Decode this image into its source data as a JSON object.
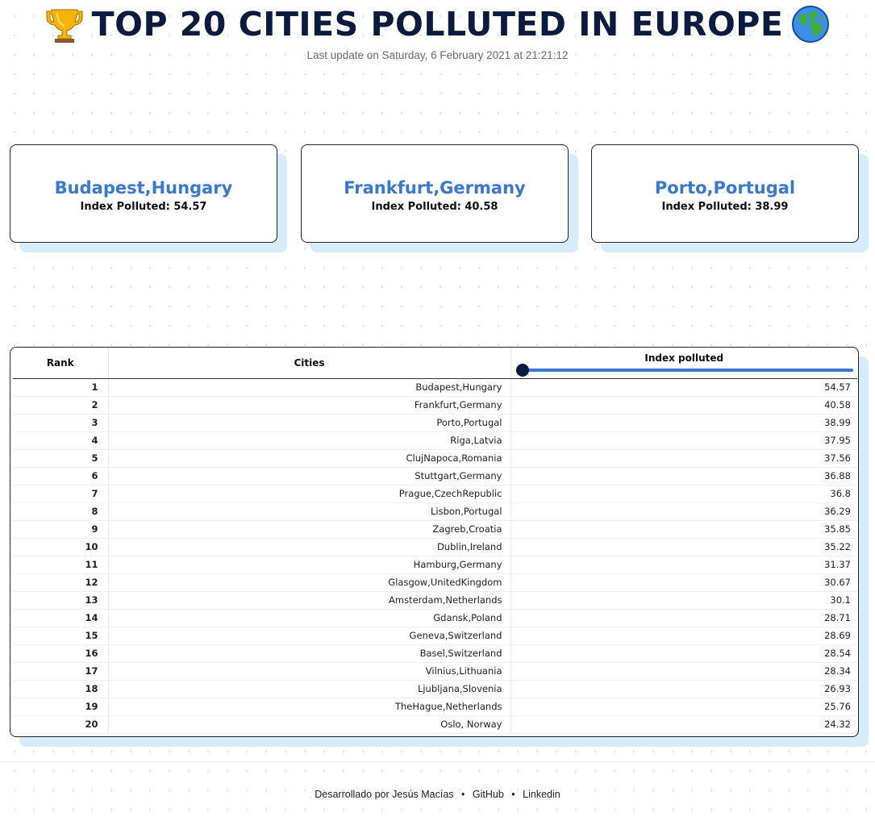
{
  "header": {
    "title": "TOP 20 CITIES POLLUTED IN EUROPE",
    "title_left_icon": "trophy-icon",
    "title_right_icon": "globe-icon",
    "subtitle": "Last update on Saturday, 6 February 2021 at 21:21:12"
  },
  "cards": [
    {
      "city": "Budapest,Hungary",
      "index": "Index Polluted: 54.57"
    },
    {
      "city": "Frankfurt,Germany",
      "index": "Index Polluted: 40.58"
    },
    {
      "city": "Porto,Portugal",
      "index": "Index Polluted: 38.99"
    }
  ],
  "table": {
    "columns": {
      "rank": "Rank",
      "city": "Cities",
      "index": "Index polluted"
    },
    "rows": [
      {
        "rank": "1",
        "city": "Budapest,Hungary",
        "index": "54.57"
      },
      {
        "rank": "2",
        "city": "Frankfurt,Germany",
        "index": "40.58"
      },
      {
        "rank": "3",
        "city": "Porto,Portugal",
        "index": "38.99"
      },
      {
        "rank": "4",
        "city": "Riga,Latvia",
        "index": "37.95"
      },
      {
        "rank": "5",
        "city": "ClujNapoca,Romania",
        "index": "37.56"
      },
      {
        "rank": "6",
        "city": "Stuttgart,Germany",
        "index": "36.88"
      },
      {
        "rank": "7",
        "city": "Prague,CzechRepublic",
        "index": "36.8"
      },
      {
        "rank": "8",
        "city": "Lisbon,Portugal",
        "index": "36.29"
      },
      {
        "rank": "9",
        "city": "Zagreb,Croatia",
        "index": "35.85"
      },
      {
        "rank": "10",
        "city": "Dublin,Ireland",
        "index": "35.22"
      },
      {
        "rank": "11",
        "city": "Hamburg,Germany",
        "index": "31.37"
      },
      {
        "rank": "12",
        "city": "Glasgow,UnitedKingdom",
        "index": "30.67"
      },
      {
        "rank": "13",
        "city": "Amsterdam,Netherlands",
        "index": "30.1"
      },
      {
        "rank": "14",
        "city": "Gdansk,Poland",
        "index": "28.71"
      },
      {
        "rank": "15",
        "city": "Geneva,Switzerland",
        "index": "28.69"
      },
      {
        "rank": "16",
        "city": "Basel,Switzerland",
        "index": "28.54"
      },
      {
        "rank": "17",
        "city": "Vilnius,Lithuania",
        "index": "28.34"
      },
      {
        "rank": "18",
        "city": "Ljubljana,Slovenia",
        "index": "26.93"
      },
      {
        "rank": "19",
        "city": "TheHague,Netherlands",
        "index": "25.76"
      },
      {
        "rank": "20",
        "city": "Oslo, Norway",
        "index": "24.32"
      }
    ],
    "filter_slider_fraction": 0
  },
  "footer": {
    "credit": "Desarrollado por Jesús Macías",
    "separator": "•",
    "github": "GitHub",
    "linkedin": "Linkedin"
  },
  "colors": {
    "title": "#0b1a3f",
    "accent": "#3a78cf",
    "shadow": "#d6ecfb",
    "knob": "#0b1a3f"
  }
}
